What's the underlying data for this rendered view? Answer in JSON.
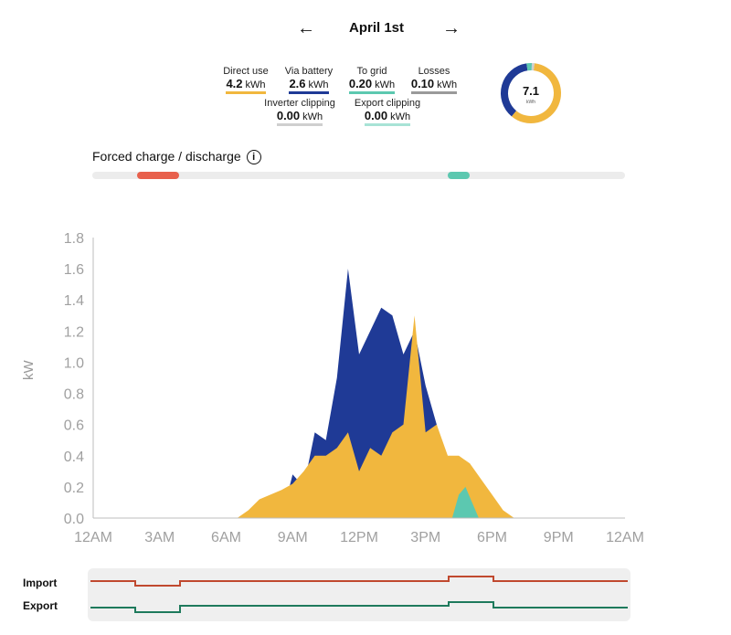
{
  "nav": {
    "prev_icon": "arrow-left-icon",
    "next_icon": "arrow-right-icon",
    "date": "April 1st"
  },
  "stats": {
    "direct_use": {
      "label": "Direct use",
      "value": "4.2",
      "unit": "kWh",
      "color": "#f1b73e"
    },
    "via_battery": {
      "label": "Via battery",
      "value": "2.6",
      "unit": "kWh",
      "color": "#1f3a96"
    },
    "to_grid": {
      "label": "To grid",
      "value": "0.20",
      "unit": "kWh",
      "color": "#5cc8b0"
    },
    "losses": {
      "label": "Losses",
      "value": "0.10",
      "unit": "kWh",
      "color": "#9a9a9a"
    },
    "inverter_clipping": {
      "label": "Inverter clipping",
      "value": "0.00",
      "unit": "kWh",
      "color": "#cfcfcf"
    },
    "export_clipping": {
      "label": "Export clipping",
      "value": "0.00",
      "unit": "kWh",
      "color": "#a8e3d6"
    }
  },
  "donut": {
    "total": "7.1",
    "unit": "kWh",
    "segments": [
      {
        "name": "Direct use",
        "value": 4.2,
        "color": "#f1b73e"
      },
      {
        "name": "Via battery",
        "value": 2.6,
        "color": "#1f3a96"
      },
      {
        "name": "To grid",
        "value": 0.2,
        "color": "#5cc8b0"
      },
      {
        "name": "Losses",
        "value": 0.1,
        "color": "#cfcfcf"
      }
    ]
  },
  "forced": {
    "label": "Forced charge / discharge",
    "info_icon": "info-icon",
    "charge_color": "#e8604c",
    "discharge_color": "#5cc8b0",
    "periods": [
      {
        "type": "charge",
        "start_hour": 2.0,
        "end_hour": 3.9
      },
      {
        "type": "discharge",
        "start_hour": 16.0,
        "end_hour": 17.0
      }
    ]
  },
  "chart_data": {
    "type": "area",
    "ylabel": "kW",
    "ylim": [
      0,
      1.8
    ],
    "xlim": [
      0,
      24
    ],
    "yticks": [
      "0.0",
      "0.2",
      "0.4",
      "0.6",
      "0.8",
      "1.0",
      "1.2",
      "1.4",
      "1.6",
      "1.8"
    ],
    "xticks": [
      "12AM",
      "3AM",
      "6AM",
      "9AM",
      "12PM",
      "3PM",
      "6PM",
      "9PM",
      "12AM"
    ],
    "series": [
      {
        "name": "Direct use",
        "color": "#f1b73e",
        "x": [
          6.5,
          7.0,
          7.5,
          8.0,
          8.5,
          9.0,
          9.5,
          10.0,
          10.5,
          11.0,
          11.5,
          12.0,
          12.5,
          13.0,
          13.5,
          14.0,
          14.5,
          15.0,
          15.5,
          16.0,
          16.5,
          17.0,
          17.5,
          18.0,
          18.5,
          19.0
        ],
        "y": [
          0.0,
          0.05,
          0.12,
          0.15,
          0.18,
          0.22,
          0.3,
          0.4,
          0.4,
          0.45,
          0.55,
          0.3,
          0.45,
          0.4,
          0.55,
          0.6,
          1.3,
          0.55,
          0.6,
          0.4,
          0.4,
          0.35,
          0.25,
          0.15,
          0.05,
          0.0
        ]
      },
      {
        "name": "Via battery",
        "color": "#1f3a96",
        "x": [
          8.5,
          9.0,
          9.5,
          10.0,
          10.5,
          11.0,
          11.5,
          12.0,
          12.5,
          13.0,
          13.5,
          14.0,
          14.5,
          15.0,
          15.5,
          16.0
        ],
        "y": [
          0.0,
          0.28,
          0.2,
          0.55,
          0.5,
          0.9,
          1.6,
          1.05,
          1.2,
          1.35,
          1.3,
          1.05,
          1.2,
          0.85,
          0.6,
          0.3
        ]
      },
      {
        "name": "To grid",
        "color": "#5cc8b0",
        "x": [
          16.2,
          16.5,
          16.8,
          17.1,
          17.4
        ],
        "y": [
          0.0,
          0.15,
          0.2,
          0.1,
          0.0
        ]
      }
    ]
  },
  "import_export": {
    "import_label": "Import",
    "export_label": "Export",
    "import_color": "#c0492f",
    "export_color": "#1e7a5c",
    "import_segments": [
      {
        "start_hour": 0,
        "end_hour": 2,
        "level": "high"
      },
      {
        "start_hour": 2,
        "end_hour": 4,
        "level": "low"
      },
      {
        "start_hour": 4,
        "end_hour": 16,
        "level": "mid"
      },
      {
        "start_hour": 16,
        "end_hour": 18,
        "level": "peak"
      },
      {
        "start_hour": 18,
        "end_hour": 24,
        "level": "mid"
      }
    ],
    "export_segments": [
      {
        "start_hour": 0,
        "end_hour": 2,
        "level": "mid"
      },
      {
        "start_hour": 2,
        "end_hour": 4,
        "level": "low"
      },
      {
        "start_hour": 4,
        "end_hour": 16,
        "level": "high"
      },
      {
        "start_hour": 16,
        "end_hour": 18,
        "level": "peak"
      },
      {
        "start_hour": 18,
        "end_hour": 24,
        "level": "mid"
      }
    ]
  }
}
